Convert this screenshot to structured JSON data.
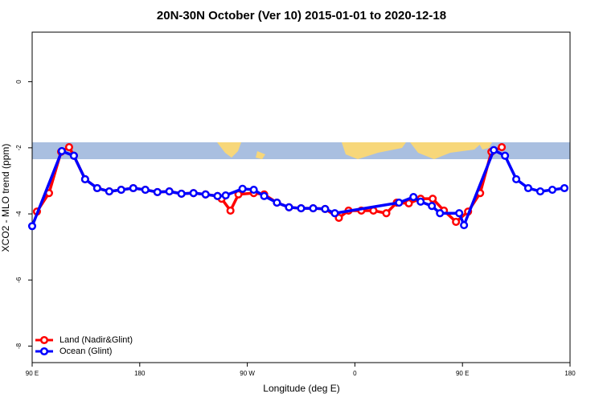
{
  "chart_data": {
    "type": "line",
    "title": "20N-30N October (Ver 10)   2015-01-01 to 2020-12-18",
    "x_label": "Longitude (deg E)",
    "y_label": "XCO2 - MLO trend (ppm)",
    "xlim": [
      90,
      540
    ],
    "ylim": [
      -8.5,
      1.5
    ],
    "xticks": [
      {
        "value": 90,
        "label": "90 E"
      },
      180,
      {
        "value": 270,
        "label": "90 W"
      },
      {
        "value": 360,
        "label": "0"
      },
      {
        "value": 450,
        "label": "90 E"
      },
      {
        "value": 540,
        "label": "180"
      }
    ],
    "yticks": [
      0,
      -2,
      -4,
      -6,
      -8
    ],
    "legend": "bottom-left",
    "series": [
      {
        "name": "Land (Nadir&Glint)",
        "color": "#ff0000",
        "x": [
          94,
          104.1,
          114.2,
          120.9,
          124.9,
          134.3,
          144.4,
          154.5,
          164.5,
          174.6,
          184.7,
          194.8,
          204.8,
          214.9,
          225,
          235.1,
          245.1,
          248.5,
          255.9,
          262.6,
          275.4,
          284.1,
          294.8,
          304.9,
          315,
          325.1,
          335.1,
          346.6,
          354.7,
          365.4,
          375.5,
          386.3,
          395,
          405.1,
          415,
          425.1,
          434.5,
          444.6,
          454.7,
          464.8,
          474.2,
          482.9
        ],
        "values": [
          -3.93,
          -3.37,
          -2.12,
          -1.98,
          -2.24,
          -2.95,
          -3.22,
          -3.32,
          -3.27,
          -3.22,
          -3.27,
          -3.34,
          -3.32,
          -3.39,
          -3.37,
          -3.41,
          -3.46,
          -3.54,
          -3.9,
          -3.41,
          -3.37,
          -3.41,
          -3.66,
          -3.8,
          -3.83,
          -3.83,
          -3.85,
          -4.12,
          -3.9,
          -3.9,
          -3.9,
          -3.98,
          -3.66,
          -3.68,
          -3.54,
          -3.54,
          -3.9,
          -4.24,
          -3.93,
          -3.37,
          -2.12,
          -1.98
        ]
      },
      {
        "name": "Ocean (Glint)",
        "color": "#0000ff",
        "x": [
          90,
          114.8,
          124.9,
          134.3,
          144.4,
          154.5,
          164.5,
          174.6,
          184.7,
          194.8,
          204.8,
          214.9,
          225,
          235.1,
          245.1,
          251.9,
          266,
          275.4,
          284.1,
          294.8,
          304.9,
          315,
          325.1,
          335.1,
          343.2,
          396.9,
          409,
          415,
          424.4,
          431.2,
          447.3,
          451.3,
          476.2,
          485.6,
          495,
          505,
          515.1,
          525.2,
          535.3
        ],
        "values": [
          -4.37,
          -2.1,
          -2.24,
          -2.95,
          -3.22,
          -3.32,
          -3.27,
          -3.22,
          -3.27,
          -3.34,
          -3.32,
          -3.39,
          -3.37,
          -3.41,
          -3.46,
          -3.44,
          -3.24,
          -3.27,
          -3.46,
          -3.66,
          -3.8,
          -3.83,
          -3.83,
          -3.85,
          -3.98,
          -3.66,
          -3.49,
          -3.63,
          -3.76,
          -3.98,
          -3.98,
          -4.34,
          -2.07,
          -2.24,
          -2.95,
          -3.22,
          -3.32,
          -3.27,
          -3.22
        ]
      }
    ]
  }
}
